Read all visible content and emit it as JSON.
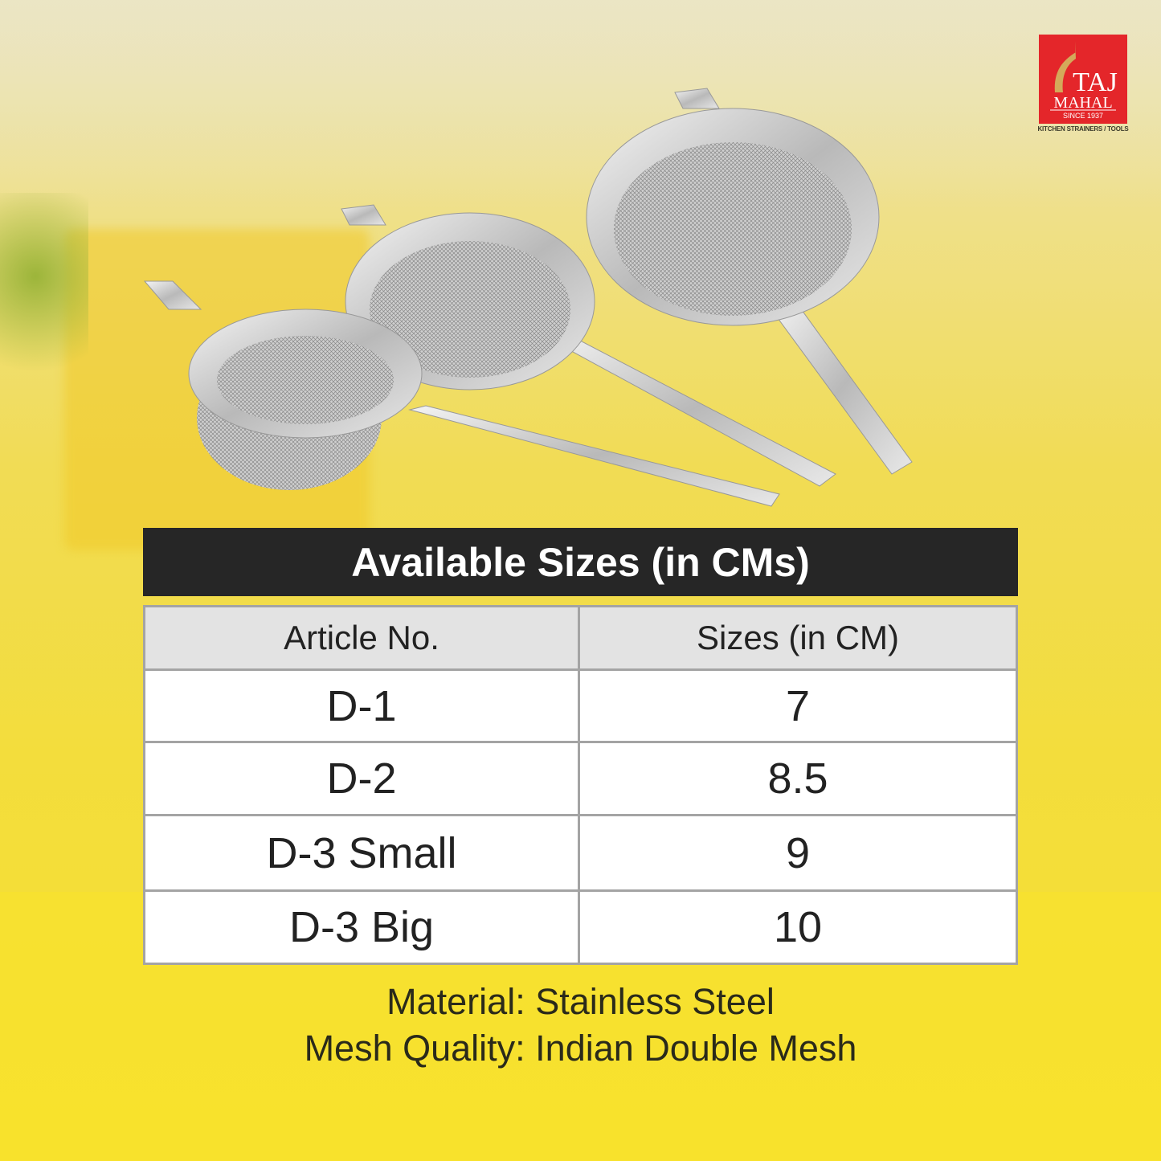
{
  "brand": {
    "logo_text": "TAJ MAHAL",
    "since": "SINCE 1937",
    "tagline": "KITCHEN STRAINERS / TOOLS",
    "color": "#e4262a"
  },
  "title": "Available Sizes (in CMs)",
  "table": {
    "headers": [
      "Article No.",
      "Sizes (in CM)"
    ],
    "rows": [
      {
        "article": "D-1",
        "size": "7"
      },
      {
        "article": "D-2",
        "size": "8.5"
      },
      {
        "article": "D-3 Small",
        "size": "9"
      },
      {
        "article": "D-3 Big",
        "size": "10"
      }
    ]
  },
  "notes": {
    "material": "Material: Stainless Steel",
    "mesh": "Mesh Quality: Indian Double Mesh"
  }
}
